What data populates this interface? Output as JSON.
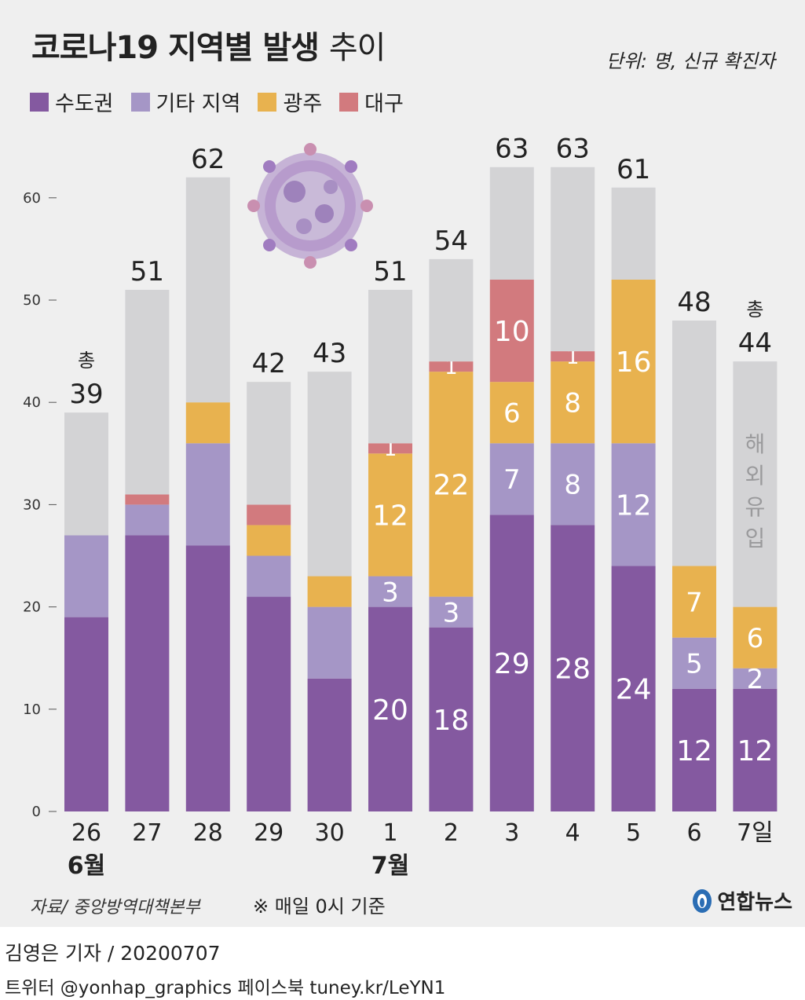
{
  "header": {
    "title_bold": "코로나19 지역별 발생",
    "title_light": "추이",
    "unit": "단위: 명, 신규 확진자"
  },
  "legend": [
    {
      "label": "수도권",
      "color": "#8459a0"
    },
    {
      "label": "기타 지역",
      "color": "#a596c6"
    },
    {
      "label": "광주",
      "color": "#e8b24f"
    },
    {
      "label": "대구",
      "color": "#d27a7e"
    }
  ],
  "chart_data": {
    "type": "bar",
    "stacked": true,
    "categories": [
      "26",
      "27",
      "28",
      "29",
      "30",
      "1",
      "2",
      "3",
      "4",
      "5",
      "6",
      "7일"
    ],
    "month_labels": [
      {
        "index": 0,
        "text": "6월"
      },
      {
        "index": 5,
        "text": "7월"
      }
    ],
    "series": [
      {
        "name": "수도권",
        "color": "#8459a0",
        "values": [
          19,
          27,
          26,
          21,
          13,
          20,
          18,
          29,
          28,
          24,
          12,
          12
        ]
      },
      {
        "name": "기타 지역",
        "color": "#a596c6",
        "values": [
          8,
          3,
          10,
          4,
          7,
          3,
          3,
          7,
          8,
          12,
          5,
          2
        ]
      },
      {
        "name": "광주",
        "color": "#e8b24f",
        "values": [
          0,
          0,
          4,
          3,
          3,
          12,
          22,
          6,
          8,
          16,
          7,
          6
        ]
      },
      {
        "name": "대구",
        "color": "#d27a7e",
        "values": [
          0,
          1,
          0,
          2,
          0,
          1,
          1,
          10,
          1,
          0,
          0,
          0
        ]
      },
      {
        "name": "해외유입",
        "color": "#d3d3d5",
        "values": [
          12,
          20,
          22,
          12,
          20,
          15,
          10,
          11,
          18,
          9,
          24,
          24
        ]
      }
    ],
    "totals": [
      39,
      51,
      62,
      42,
      43,
      51,
      54,
      63,
      63,
      61,
      48,
      44
    ],
    "total_prefix": "총",
    "total_prefix_indices": [
      0,
      11
    ],
    "labeled_bars": [
      5,
      6,
      7,
      8,
      9,
      10,
      11
    ],
    "import_label": "해외유입",
    "yticks": [
      0,
      10,
      20,
      30,
      40,
      50,
      60
    ],
    "ylim": [
      0,
      63
    ]
  },
  "footer": {
    "source": "자료/ 중앙방역대책본부",
    "basis": "※ 매일 0시 기준",
    "logo": "연합뉴스",
    "reporter": "김영은 기자 / 20200707",
    "social": "트위터 @yonhap_graphics  페이스북 tuney.kr/LeYN1"
  }
}
